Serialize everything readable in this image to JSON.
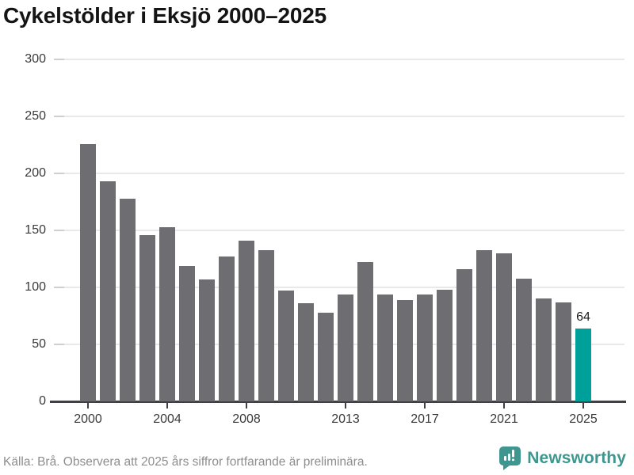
{
  "title": "Cykelstölder i Eksjö 2000–2025",
  "footer": {
    "source_note": "Källa: Brå. Observera att 2025 års siffror fortfarande är preliminära.",
    "brand": "Newsworthy"
  },
  "chart_data": {
    "type": "bar",
    "title": "Cykelstölder i Eksjö 2000–2025",
    "categories": [
      "2000",
      "2001",
      "2002",
      "2003",
      "2004",
      "2005",
      "2006",
      "2007",
      "2008",
      "2009",
      "2010",
      "2011",
      "2012",
      "2013",
      "2014",
      "2015",
      "2016",
      "2017",
      "2018",
      "2019",
      "2020",
      "2021",
      "2022",
      "2023",
      "2024",
      "2025"
    ],
    "values": [
      226,
      193,
      178,
      146,
      153,
      119,
      107,
      127,
      141,
      133,
      97,
      86,
      78,
      94,
      122,
      94,
      89,
      94,
      98,
      116,
      133,
      130,
      108,
      90,
      87,
      64
    ],
    "highlight_index": 25,
    "highlight_value_label": "64",
    "x_tick_labels": [
      "2000",
      "2004",
      "2008",
      "2013",
      "2017",
      "2021",
      "2025"
    ],
    "y_ticks": [
      0,
      50,
      100,
      150,
      200,
      250,
      300
    ],
    "ylim": [
      0,
      300
    ],
    "grid": true,
    "legend": false,
    "xlabel": "",
    "ylabel": "",
    "bar_color": "#6d6d72",
    "highlight_color": "#00a09a",
    "grid_color": "#e9e9e9",
    "y_tick_color": "#cfcfcf",
    "axis_color": "#3f3f44",
    "tick_label_color": "#3a3a3a",
    "value_label_color": "#1c1c1c"
  },
  "brand_colors": {
    "logo_teal": "#3e968f"
  }
}
